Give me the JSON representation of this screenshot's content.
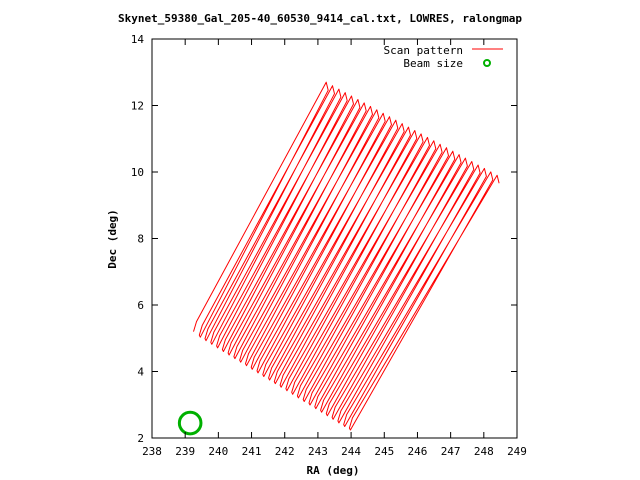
{
  "chart_data": {
    "type": "line",
    "title": "Skynet_59380_Gal_205-40_60530_9414_cal.txt, LOWRES, ralongmap",
    "xlabel": "RA (deg)",
    "ylabel": "Dec (deg)",
    "xlim": [
      238,
      249
    ],
    "ylim": [
      2,
      14
    ],
    "xticks": [
      "238",
      "239",
      "240",
      "241",
      "242",
      "243",
      "244",
      "245",
      "246",
      "247",
      "248",
      "249"
    ],
    "yticks": [
      "2",
      "4",
      "6",
      "8",
      "10",
      "12",
      "14"
    ],
    "grid": false,
    "legend_position": "top-right",
    "series": [
      {
        "name": "Scan pattern",
        "color": "#ff0000",
        "style": "line",
        "scan_lines": {
          "count": 28,
          "bottom_start": [
            239.25,
            5.2
          ],
          "bottom_end": [
            243.95,
            2.3
          ],
          "top_start": [
            243.25,
            12.7
          ],
          "top_end": [
            248.4,
            9.9
          ]
        }
      },
      {
        "name": "Beam size",
        "color": "#00b000",
        "style": "circle",
        "center": [
          239.15,
          2.45
        ],
        "diameter_deg": 0.65
      }
    ]
  }
}
